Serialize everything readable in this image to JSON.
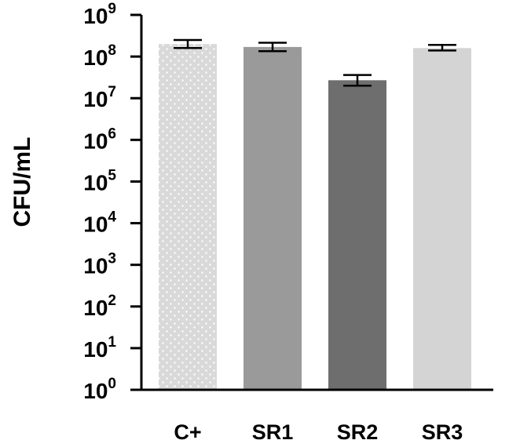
{
  "chart_data": {
    "type": "bar",
    "ylabel": "CFU/mL",
    "xlabel": "",
    "yscale": "log",
    "ylim": [
      1,
      1000000000
    ],
    "ytick_base": "10",
    "ytick_exponents": [
      "0",
      "1",
      "2",
      "3",
      "4",
      "5",
      "6",
      "7",
      "8",
      "9"
    ],
    "categories": [
      "C+",
      "SR1",
      "SR2",
      "SR3"
    ],
    "values": [
      200000000,
      170000000,
      27000000,
      160000000
    ],
    "errors": [
      [
        160000000,
        250000000
      ],
      [
        135000000,
        215000000
      ],
      [
        20000000,
        36000000
      ],
      [
        140000000,
        190000000
      ]
    ],
    "bar_colors": [
      "#d9d9d9",
      "#9a9a9a",
      "#6e6e6e",
      "#d4d4d4"
    ],
    "bar_patterns": [
      "dotted",
      "solid",
      "solid",
      "solid"
    ],
    "grid": false,
    "legend": "none"
  }
}
